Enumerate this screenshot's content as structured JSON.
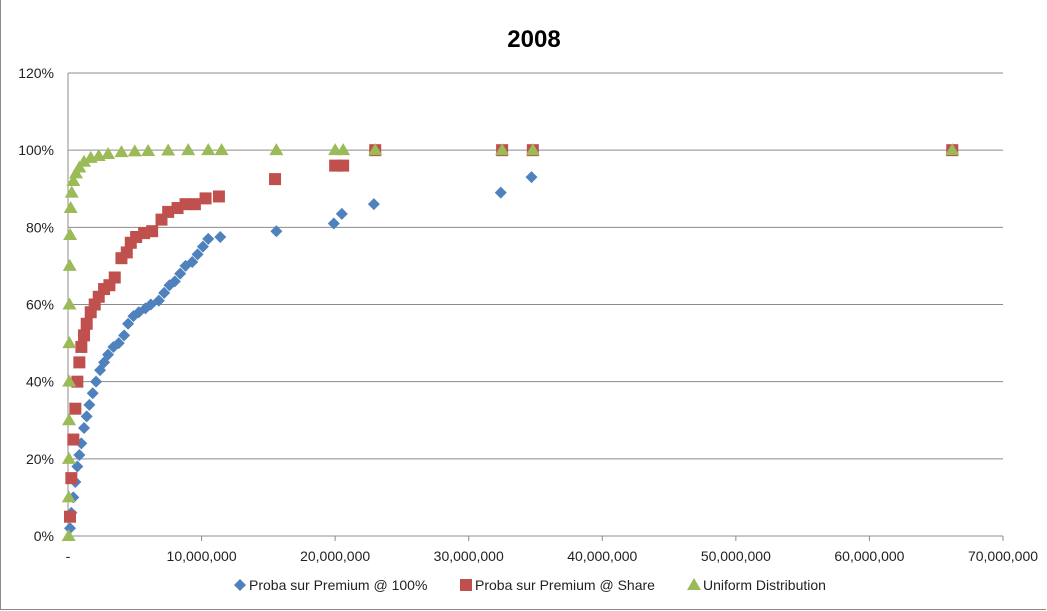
{
  "chart_data": {
    "type": "scatter",
    "title": "2008",
    "xlabel": "",
    "ylabel": "",
    "xlim": [
      0,
      70000000
    ],
    "ylim": [
      0,
      1.2
    ],
    "grid": true,
    "legend_position": "bottom",
    "x_ticks": [
      "-",
      "10,000,000",
      "20,000,000",
      "30,000,000",
      "40,000,000",
      "50,000,000",
      "60,000,000",
      "70,000,000"
    ],
    "y_ticks": [
      "0%",
      "20%",
      "40%",
      "60%",
      "80%",
      "100%",
      "120%"
    ],
    "series": [
      {
        "name": "Proba sur Premium @ 100%",
        "marker": "diamond",
        "color": "#4f81bd",
        "points": [
          [
            150000,
            0.02
          ],
          [
            250000,
            0.06
          ],
          [
            400000,
            0.1
          ],
          [
            550000,
            0.14
          ],
          [
            700000,
            0.18
          ],
          [
            850000,
            0.21
          ],
          [
            1000000,
            0.24
          ],
          [
            1200000,
            0.28
          ],
          [
            1400000,
            0.31
          ],
          [
            1600000,
            0.34
          ],
          [
            1850000,
            0.37
          ],
          [
            2100000,
            0.4
          ],
          [
            2400000,
            0.43
          ],
          [
            2700000,
            0.45
          ],
          [
            3000000,
            0.47
          ],
          [
            3400000,
            0.49
          ],
          [
            3800000,
            0.5
          ],
          [
            4200000,
            0.52
          ],
          [
            4500000,
            0.55
          ],
          [
            4900000,
            0.57
          ],
          [
            5300000,
            0.58
          ],
          [
            5800000,
            0.59
          ],
          [
            6200000,
            0.6
          ],
          [
            6800000,
            0.61
          ],
          [
            7200000,
            0.63
          ],
          [
            7600000,
            0.65
          ],
          [
            8000000,
            0.66
          ],
          [
            8400000,
            0.68
          ],
          [
            8800000,
            0.7
          ],
          [
            9300000,
            0.71
          ],
          [
            9700000,
            0.73
          ],
          [
            10100000,
            0.75
          ],
          [
            10500000,
            0.77
          ],
          [
            11400000,
            0.775
          ],
          [
            15600000,
            0.79
          ],
          [
            19900000,
            0.81
          ],
          [
            20500000,
            0.835
          ],
          [
            22900000,
            0.86
          ],
          [
            32400000,
            0.89
          ],
          [
            34700000,
            0.93
          ],
          [
            66200000,
            1.0
          ]
        ]
      },
      {
        "name": "Proba sur Premium @ Share",
        "marker": "square",
        "color": "#c0504d",
        "points": [
          [
            150000,
            0.05
          ],
          [
            250000,
            0.15
          ],
          [
            400000,
            0.25
          ],
          [
            550000,
            0.33
          ],
          [
            700000,
            0.4
          ],
          [
            850000,
            0.45
          ],
          [
            1000000,
            0.49
          ],
          [
            1200000,
            0.52
          ],
          [
            1400000,
            0.55
          ],
          [
            1700000,
            0.58
          ],
          [
            2000000,
            0.6
          ],
          [
            2300000,
            0.62
          ],
          [
            2700000,
            0.64
          ],
          [
            3100000,
            0.65
          ],
          [
            3500000,
            0.67
          ],
          [
            4000000,
            0.72
          ],
          [
            4400000,
            0.735
          ],
          [
            4700000,
            0.76
          ],
          [
            5100000,
            0.775
          ],
          [
            5700000,
            0.785
          ],
          [
            6300000,
            0.79
          ],
          [
            7000000,
            0.82
          ],
          [
            7500000,
            0.84
          ],
          [
            8200000,
            0.85
          ],
          [
            8800000,
            0.86
          ],
          [
            9500000,
            0.86
          ],
          [
            10300000,
            0.875
          ],
          [
            11300000,
            0.88
          ],
          [
            15500000,
            0.925
          ],
          [
            20000000,
            0.96
          ],
          [
            20600000,
            0.96
          ],
          [
            23000000,
            1.0
          ],
          [
            32500000,
            1.0
          ],
          [
            34800000,
            1.0
          ],
          [
            66200000,
            1.0
          ]
        ]
      },
      {
        "name": "Uniform Distribution",
        "marker": "triangle",
        "color": "#9bbb59",
        "points": [
          [
            50000,
            0.0
          ],
          [
            60000,
            0.1
          ],
          [
            70000,
            0.2
          ],
          [
            80000,
            0.3
          ],
          [
            90000,
            0.4
          ],
          [
            100000,
            0.5
          ],
          [
            110000,
            0.6
          ],
          [
            130000,
            0.7
          ],
          [
            160000,
            0.78
          ],
          [
            200000,
            0.85
          ],
          [
            280000,
            0.89
          ],
          [
            400000,
            0.92
          ],
          [
            600000,
            0.94
          ],
          [
            850000,
            0.955
          ],
          [
            1200000,
            0.97
          ],
          [
            1700000,
            0.98
          ],
          [
            2300000,
            0.985
          ],
          [
            3000000,
            0.99
          ],
          [
            4000000,
            0.995
          ],
          [
            5000000,
            0.997
          ],
          [
            6000000,
            0.998
          ],
          [
            7500000,
            0.999
          ],
          [
            9000000,
            1.0
          ],
          [
            10500000,
            1.0
          ],
          [
            11500000,
            1.0
          ],
          [
            15600000,
            1.0
          ],
          [
            20000000,
            1.0
          ],
          [
            20600000,
            1.0
          ],
          [
            23000000,
            1.0
          ],
          [
            32500000,
            1.0
          ],
          [
            34800000,
            1.0
          ],
          [
            66200000,
            1.0
          ]
        ]
      }
    ]
  }
}
